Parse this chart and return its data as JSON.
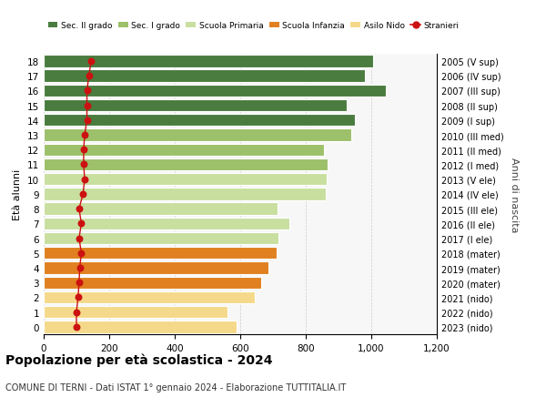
{
  "ages": [
    0,
    1,
    2,
    3,
    4,
    5,
    6,
    7,
    8,
    9,
    10,
    11,
    12,
    13,
    14,
    15,
    16,
    17,
    18
  ],
  "bar_values": [
    590,
    560,
    645,
    665,
    685,
    710,
    718,
    750,
    715,
    862,
    865,
    868,
    855,
    940,
    950,
    925,
    1045,
    980,
    1005
  ],
  "stranieri": [
    100,
    100,
    105,
    108,
    110,
    115,
    108,
    115,
    108,
    120,
    125,
    122,
    122,
    125,
    132,
    132,
    132,
    138,
    145
  ],
  "right_labels": [
    "2023 (nido)",
    "2022 (nido)",
    "2021 (nido)",
    "2020 (mater)",
    "2019 (mater)",
    "2018 (mater)",
    "2017 (I ele)",
    "2016 (II ele)",
    "2015 (III ele)",
    "2014 (IV ele)",
    "2013 (V ele)",
    "2012 (I med)",
    "2011 (II med)",
    "2010 (III med)",
    "2009 (I sup)",
    "2008 (II sup)",
    "2007 (III sup)",
    "2006 (IV sup)",
    "2005 (V sup)"
  ],
  "bar_colors": [
    "#f5d98b",
    "#f5d98b",
    "#f5d98b",
    "#e08020",
    "#e08020",
    "#e08020",
    "#c8dfa0",
    "#c8dfa0",
    "#c8dfa0",
    "#c8dfa0",
    "#c8dfa0",
    "#9dc06a",
    "#9dc06a",
    "#9dc06a",
    "#4a7c3f",
    "#4a7c3f",
    "#4a7c3f",
    "#4a7c3f",
    "#4a7c3f"
  ],
  "legend_labels": [
    "Sec. II grado",
    "Sec. I grado",
    "Scuola Primaria",
    "Scuola Infanzia",
    "Asilo Nido",
    "Stranieri"
  ],
  "legend_colors": [
    "#4a7c3f",
    "#9dc06a",
    "#c8dfa0",
    "#e08020",
    "#f5d98b",
    "#cc1111"
  ],
  "title": "Popolazione per età scolastica - 2024",
  "subtitle": "COMUNE DI TERNI - Dati ISTAT 1° gennaio 2024 - Elaborazione TUTTITALIA.IT",
  "ylabel": "Età alunni",
  "right_ylabel": "Anni di nascita",
  "xlim": [
    0,
    1200
  ],
  "xticks": [
    0,
    200,
    400,
    600,
    800,
    1000,
    1200
  ],
  "stranieri_color": "#cc1111",
  "bg_color": "#f7f7f7",
  "bar_height": 0.82
}
